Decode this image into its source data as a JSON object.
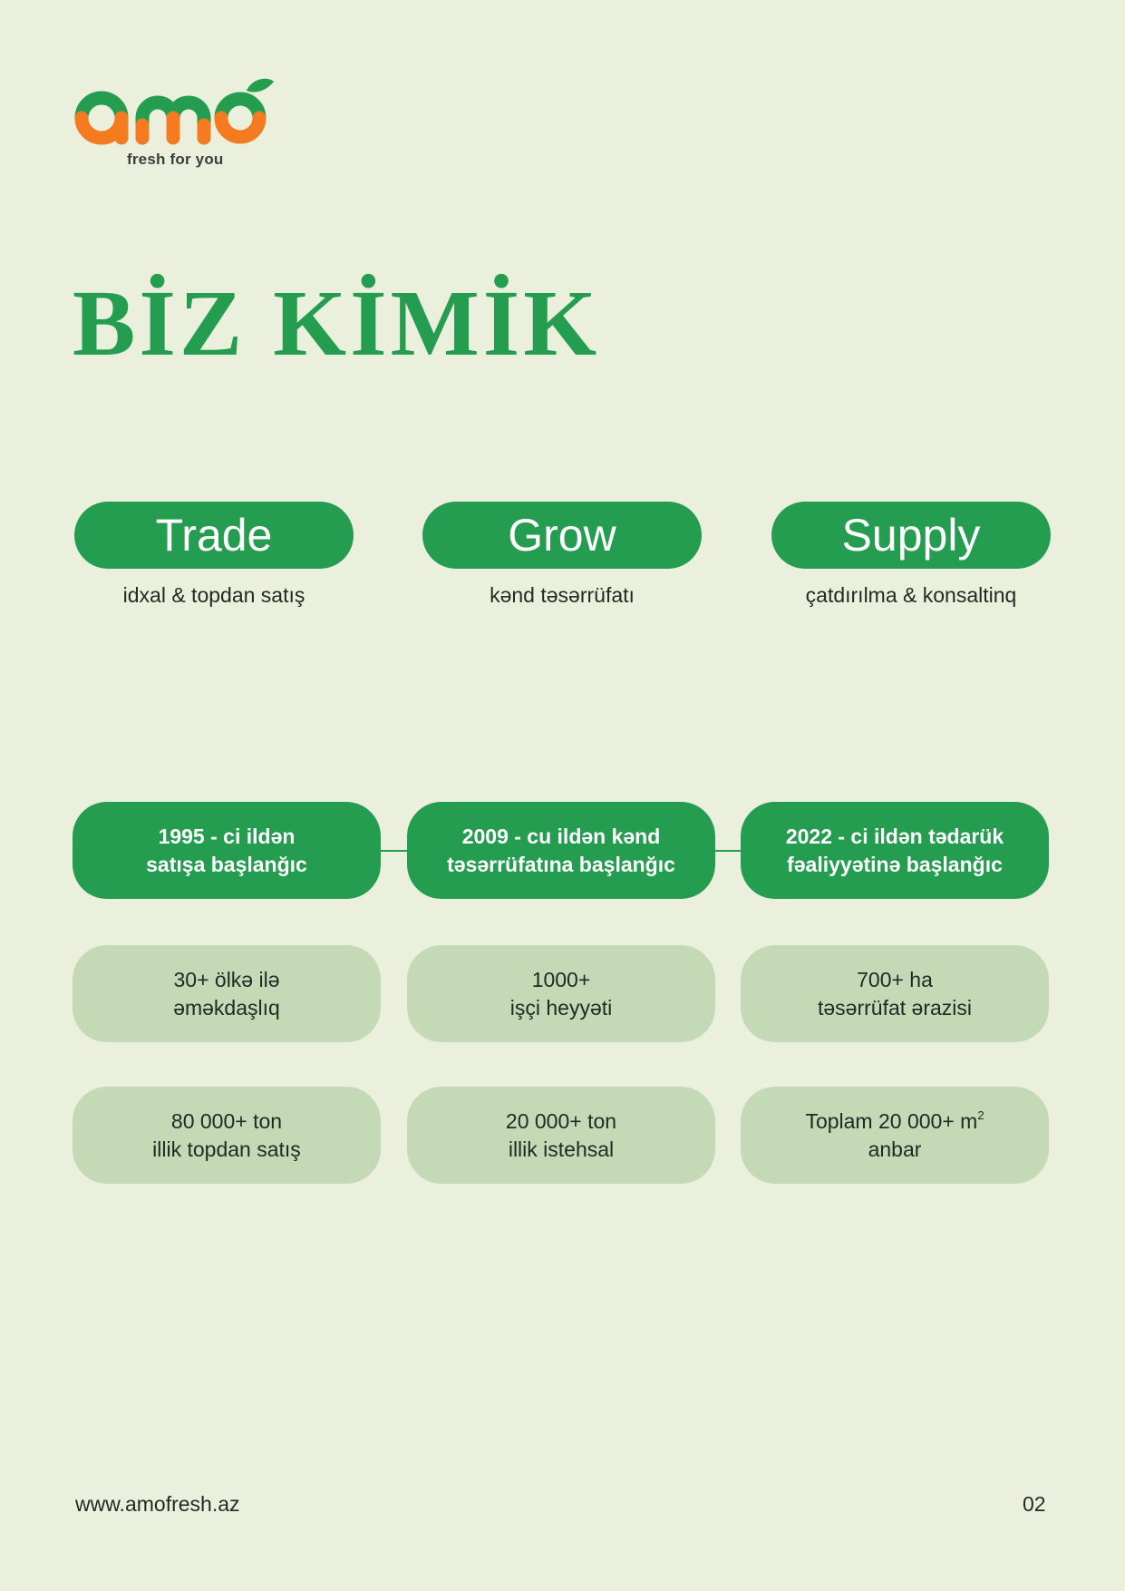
{
  "brand": {
    "logo_text": "amo",
    "tagline": "fresh for you",
    "colors": {
      "green": "#259d50",
      "orange": "#f47b20"
    }
  },
  "heading": "BİZ KİMİK",
  "segments": [
    {
      "title": "Trade",
      "subtitle": "idxal & topdan satış"
    },
    {
      "title": "Grow",
      "subtitle": "kənd təsərrüfatı"
    },
    {
      "title": "Supply",
      "subtitle": "çatdırılma & konsaltinq"
    }
  ],
  "milestones": [
    {
      "line1": "1995 - ci ildən",
      "line2": "satışa başlanğıc"
    },
    {
      "line1": "2009 - cu ildən kənd",
      "line2": "təsərrüfatına başlanğıc"
    },
    {
      "line1": "2022 - ci ildən tədarük",
      "line2": "fəaliyyətinə başlanğıc"
    }
  ],
  "stats_row1": [
    {
      "line1": "30+ ölkə ilə",
      "line2": "əməkdaşlıq"
    },
    {
      "line1": "1000+",
      "line2": "işçi heyyəti"
    },
    {
      "line1": "700+ ha",
      "line2": "təsərrüfat ərazisi"
    }
  ],
  "stats_row2": [
    {
      "line1": "80 000+ ton",
      "line2": "illik topdan satış"
    },
    {
      "line1": "20 000+ ton",
      "line2": "illik istehsal"
    },
    {
      "line1": "Toplam 20 000+ m",
      "line1_sup": "2",
      "line2": "anbar"
    }
  ],
  "footer": {
    "url": "www.amofresh.az",
    "page_number": "02"
  }
}
